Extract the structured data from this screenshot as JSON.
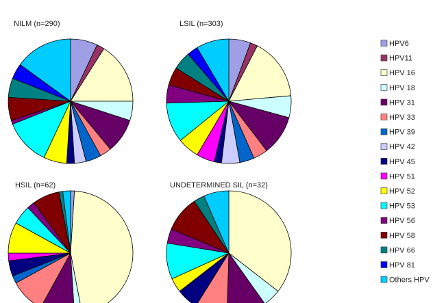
{
  "chart_data": {
    "type": "pie",
    "legend_position": "right",
    "categories": [
      "HPV6",
      "HPV11",
      "HPV 16",
      "HPV 18",
      "HPV 31",
      "HPV 33",
      "HPV 39",
      "HPV 42",
      "HPV 45",
      "HPV 51",
      "HPV 52",
      "HPV 53",
      "HPV 56",
      "HPV 58",
      "HPV 66",
      "HPV 81",
      "Others HPV"
    ],
    "colors": [
      "#9f9fe6",
      "#993366",
      "#ffffcc",
      "#ccffff",
      "#660066",
      "#ff8080",
      "#0066cc",
      "#ccccff",
      "#000080",
      "#ff00ff",
      "#ffff00",
      "#00ffff",
      "#800080",
      "#800000",
      "#008080",
      "#0000ff",
      "#00ccff"
    ],
    "charts": [
      {
        "title": "NILM (n=290)",
        "values": [
          7,
          2,
          16,
          5,
          9,
          3,
          4,
          3,
          2,
          0,
          6,
          12,
          1,
          6,
          5,
          4,
          15
        ]
      },
      {
        "title": "LSIL (n=303)",
        "values": [
          6,
          2,
          17,
          6,
          11,
          4,
          4,
          5,
          2,
          5,
          6,
          11,
          5,
          5,
          5,
          3,
          9
        ]
      },
      {
        "title": "HSIL (n=62)",
        "values": [
          1,
          0,
          46,
          2,
          9,
          9,
          2,
          0,
          4,
          2,
          8,
          5,
          2,
          7,
          1,
          0,
          2
        ]
      },
      {
        "title": "UNDETERMINED SIL (n=32)",
        "values": [
          0,
          0,
          38,
          5,
          11,
          9,
          0,
          0,
          6,
          0,
          4,
          10,
          4,
          10,
          3,
          0,
          7
        ]
      }
    ]
  }
}
